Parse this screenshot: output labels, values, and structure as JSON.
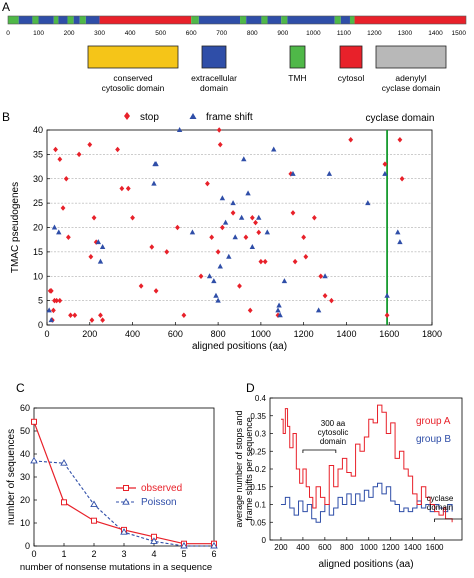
{
  "panel_labels": {
    "a": "A",
    "b": "B",
    "c": "C",
    "d": "D"
  },
  "colors": {
    "cytosolic_conserved": "#f5c518",
    "extracellular": "#2f4ea8",
    "tmh": "#4fb848",
    "cytosol": "#e8212a",
    "cyclase": "#b8b8b8",
    "stop": "#e8212a",
    "frameshift": "#2f4ea8",
    "cyclase_line": "#169b2e",
    "observed": "#e8212a",
    "poisson": "#2f4ea8",
    "groupA": "#e8212a",
    "groupB": "#2f4ea8"
  },
  "legend_a": [
    {
      "key": "cytosolic_conserved",
      "label_lines": [
        "conserved",
        "cytosolic domain"
      ]
    },
    {
      "key": "extracellular",
      "label_lines": [
        "extracellular",
        "domain"
      ]
    },
    {
      "key": "tmh",
      "label_lines": [
        "TMH"
      ]
    },
    {
      "key": "cytosol",
      "label_lines": [
        "cytosol"
      ]
    },
    {
      "key": "cyclase",
      "label_lines": [
        "adenylyl",
        "cyclase domain"
      ]
    }
  ],
  "chart_data": [
    {
      "panel": "A",
      "type": "domain-bar",
      "x_range": [
        0,
        1500
      ],
      "tick_labels": [
        "0",
        "100",
        "200",
        "300",
        "400",
        "500",
        "600",
        "700",
        "800",
        "900",
        "1000",
        "1100",
        "1200",
        "1300",
        "1400",
        "1500"
      ],
      "segments": [
        {
          "start": 0,
          "end": 35,
          "domain": "tmh"
        },
        {
          "start": 35,
          "end": 80,
          "domain": "extracellular"
        },
        {
          "start": 80,
          "end": 100,
          "domain": "tmh"
        },
        {
          "start": 100,
          "end": 150,
          "domain": "extracellular"
        },
        {
          "start": 150,
          "end": 165,
          "domain": "tmh"
        },
        {
          "start": 165,
          "end": 195,
          "domain": "extracellular"
        },
        {
          "start": 195,
          "end": 215,
          "domain": "tmh"
        },
        {
          "start": 215,
          "end": 235,
          "domain": "extracellular"
        },
        {
          "start": 235,
          "end": 255,
          "domain": "tmh"
        },
        {
          "start": 255,
          "end": 300,
          "domain": "extracellular"
        },
        {
          "start": 300,
          "end": 600,
          "domain": "cytosol"
        },
        {
          "start": 600,
          "end": 625,
          "domain": "tmh"
        },
        {
          "start": 625,
          "end": 760,
          "domain": "extracellular"
        },
        {
          "start": 760,
          "end": 780,
          "domain": "tmh"
        },
        {
          "start": 780,
          "end": 830,
          "domain": "extracellular"
        },
        {
          "start": 830,
          "end": 850,
          "domain": "tmh"
        },
        {
          "start": 850,
          "end": 895,
          "domain": "extracellular"
        },
        {
          "start": 895,
          "end": 915,
          "domain": "tmh"
        },
        {
          "start": 915,
          "end": 1070,
          "domain": "extracellular"
        },
        {
          "start": 1070,
          "end": 1090,
          "domain": "tmh"
        },
        {
          "start": 1090,
          "end": 1120,
          "domain": "extracellular"
        },
        {
          "start": 1120,
          "end": 1135,
          "domain": "tmh"
        },
        {
          "start": 1135,
          "end": 1500,
          "domain": "cytosol"
        }
      ]
    },
    {
      "panel": "B",
      "type": "scatter",
      "xlabel": "aligned positions (aa)",
      "ylabel": "TMAC pseudogenes",
      "xlim": [
        0,
        1800
      ],
      "ylim": [
        0,
        40
      ],
      "xticks": [
        0,
        200,
        400,
        600,
        800,
        1000,
        1200,
        1400,
        1600,
        1800
      ],
      "yticks": [
        0,
        5,
        10,
        15,
        20,
        25,
        30,
        35,
        40
      ],
      "grid": "horizontal dashed",
      "legend": {
        "stop": "stop",
        "frameshift": "frame shift"
      },
      "annotation": {
        "text": "cyclase domain",
        "x": 1590
      },
      "series": [
        {
          "name": "stop",
          "marker": "diamond",
          "points": [
            [
              40,
              36
            ],
            [
              60,
              34
            ],
            [
              75,
              24
            ],
            [
              90,
              30
            ],
            [
              100,
              18
            ],
            [
              110,
              2
            ],
            [
              130,
              2
            ],
            [
              150,
              35
            ],
            [
              15,
              7
            ],
            [
              20,
              7
            ],
            [
              35,
              5
            ],
            [
              45,
              5
            ],
            [
              60,
              5
            ],
            [
              25,
              1
            ],
            [
              30,
              3
            ],
            [
              200,
              37
            ],
            [
              205,
              14
            ],
            [
              210,
              1
            ],
            [
              220,
              22
            ],
            [
              230,
              17
            ],
            [
              250,
              2
            ],
            [
              260,
              1
            ],
            [
              330,
              36
            ],
            [
              350,
              28
            ],
            [
              380,
              28
            ],
            [
              400,
              22
            ],
            [
              440,
              8
            ],
            [
              490,
              16
            ],
            [
              510,
              7
            ],
            [
              560,
              15
            ],
            [
              610,
              20
            ],
            [
              640,
              2
            ],
            [
              720,
              10
            ],
            [
              750,
              29
            ],
            [
              770,
              18
            ],
            [
              800,
              15
            ],
            [
              805,
              40
            ],
            [
              810,
              37
            ],
            [
              820,
              20
            ],
            [
              870,
              23
            ],
            [
              900,
              8
            ],
            [
              930,
              18
            ],
            [
              950,
              3
            ],
            [
              960,
              22
            ],
            [
              975,
              21
            ],
            [
              990,
              19
            ],
            [
              1000,
              13
            ],
            [
              1020,
              13
            ],
            [
              1080,
              2
            ],
            [
              1140,
              31
            ],
            [
              1150,
              23
            ],
            [
              1160,
              13
            ],
            [
              1200,
              18
            ],
            [
              1210,
              14
            ],
            [
              1250,
              22
            ],
            [
              1280,
              10
            ],
            [
              1300,
              6
            ],
            [
              1330,
              5
            ],
            [
              1420,
              38
            ],
            [
              1580,
              33
            ],
            [
              1590,
              2
            ],
            [
              1650,
              38
            ],
            [
              1660,
              30
            ]
          ]
        },
        {
          "name": "frameshift",
          "marker": "triangle",
          "points": [
            [
              10,
              3
            ],
            [
              20,
              1
            ],
            [
              35,
              20
            ],
            [
              55,
              19
            ],
            [
              240,
              17
            ],
            [
              250,
              13
            ],
            [
              260,
              16
            ],
            [
              500,
              29
            ],
            [
              505,
              33
            ],
            [
              510,
              33
            ],
            [
              620,
              40
            ],
            [
              680,
              19
            ],
            [
              760,
              10
            ],
            [
              780,
              9
            ],
            [
              790,
              6
            ],
            [
              800,
              5
            ],
            [
              810,
              12
            ],
            [
              820,
              26
            ],
            [
              835,
              21
            ],
            [
              850,
              14
            ],
            [
              870,
              25
            ],
            [
              880,
              18
            ],
            [
              910,
              22
            ],
            [
              920,
              34
            ],
            [
              940,
              27
            ],
            [
              960,
              16
            ],
            [
              990,
              22
            ],
            [
              1030,
              19
            ],
            [
              1060,
              36
            ],
            [
              1080,
              3
            ],
            [
              1085,
              4
            ],
            [
              1090,
              2
            ],
            [
              1110,
              9
            ],
            [
              1150,
              31
            ],
            [
              1270,
              3
            ],
            [
              1300,
              10
            ],
            [
              1320,
              31
            ],
            [
              1500,
              25
            ],
            [
              1580,
              31
            ],
            [
              1590,
              6
            ],
            [
              1640,
              19
            ],
            [
              1650,
              17
            ]
          ]
        }
      ]
    },
    {
      "panel": "C",
      "type": "line",
      "xlabel": "number of nonsense mutations in a sequence",
      "ylabel": "number of sequences",
      "xlim": [
        0,
        6
      ],
      "ylim": [
        0,
        60
      ],
      "xticks": [
        0,
        1,
        2,
        3,
        4,
        5,
        6
      ],
      "yticks": [
        0,
        10,
        20,
        30,
        40,
        50,
        60
      ],
      "x": [
        0,
        1,
        2,
        3,
        4,
        5,
        6
      ],
      "series": [
        {
          "name": "observed",
          "marker": "square",
          "values": [
            54,
            19,
            11,
            7,
            4,
            1,
            1
          ]
        },
        {
          "name": "Poisson",
          "marker": "triangle",
          "values": [
            37,
            36,
            18,
            6,
            2,
            0,
            0
          ]
        }
      ]
    },
    {
      "panel": "D",
      "type": "line",
      "xlabel": "aligned positions (aa)",
      "ylabel_lines": [
        "average number of stops and",
        "frame shifts per sequence"
      ],
      "xlim": [
        100,
        1850
      ],
      "ylim": [
        0,
        0.4
      ],
      "xticks": [
        200,
        400,
        600,
        800,
        1000,
        1200,
        1400,
        1600
      ],
      "yticks": [
        0,
        0.05,
        0.1,
        0.15,
        0.2,
        0.25,
        0.3,
        0.35,
        0.4
      ],
      "ytick_labels": [
        "0",
        "0.05",
        "0.1",
        "0.15",
        "0.2",
        "0.25",
        "0.3",
        "0.35",
        "0.4"
      ],
      "annotations": [
        {
          "lines": [
            "300 aa",
            "cytosolic",
            "domain"
          ]
        },
        {
          "lines": [
            "cyclase",
            "domain"
          ]
        }
      ],
      "series": [
        {
          "name": "group A",
          "step": true,
          "points": [
            [
              200,
              0.34
            ],
            [
              220,
              0.3
            ],
            [
              240,
              0.37
            ],
            [
              260,
              0.32
            ],
            [
              280,
              0.26
            ],
            [
              310,
              0.3
            ],
            [
              340,
              0.2
            ],
            [
              370,
              0.16
            ],
            [
              400,
              0.2
            ],
            [
              430,
              0.15
            ],
            [
              460,
              0.12
            ],
            [
              490,
              0.09
            ],
            [
              520,
              0.15
            ],
            [
              560,
              0.12
            ],
            [
              600,
              0.1
            ],
            [
              640,
              0.21
            ],
            [
              680,
              0.15
            ],
            [
              720,
              0.2
            ],
            [
              760,
              0.23
            ],
            [
              800,
              0.19
            ],
            [
              840,
              0.18
            ],
            [
              880,
              0.27
            ],
            [
              920,
              0.25
            ],
            [
              960,
              0.29
            ],
            [
              1000,
              0.34
            ],
            [
              1040,
              0.33
            ],
            [
              1080,
              0.38
            ],
            [
              1120,
              0.36
            ],
            [
              1160,
              0.3
            ],
            [
              1200,
              0.33
            ],
            [
              1240,
              0.23
            ],
            [
              1280,
              0.25
            ],
            [
              1320,
              0.2
            ],
            [
              1360,
              0.18
            ],
            [
              1400,
              0.13
            ],
            [
              1440,
              0.1
            ],
            [
              1480,
              0.15
            ],
            [
              1520,
              0.12
            ],
            [
              1560,
              0.1
            ],
            [
              1600,
              0.08
            ],
            [
              1640,
              0.07
            ],
            [
              1680,
              0.09
            ],
            [
              1700,
              0.06
            ],
            [
              1760,
              0.05
            ]
          ]
        },
        {
          "name": "group B",
          "step": true,
          "points": [
            [
              200,
              0.1
            ],
            [
              240,
              0.12
            ],
            [
              280,
              0.09
            ],
            [
              320,
              0.07
            ],
            [
              360,
              0.11
            ],
            [
              400,
              0.08
            ],
            [
              440,
              0.1
            ],
            [
              480,
              0.06
            ],
            [
              520,
              0.05
            ],
            [
              560,
              0.08
            ],
            [
              600,
              0.1
            ],
            [
              640,
              0.07
            ],
            [
              680,
              0.09
            ],
            [
              720,
              0.12
            ],
            [
              760,
              0.1
            ],
            [
              800,
              0.13
            ],
            [
              840,
              0.1
            ],
            [
              880,
              0.13
            ],
            [
              920,
              0.11
            ],
            [
              960,
              0.14
            ],
            [
              1000,
              0.12
            ],
            [
              1040,
              0.15
            ],
            [
              1080,
              0.16
            ],
            [
              1120,
              0.13
            ],
            [
              1160,
              0.15
            ],
            [
              1200,
              0.11
            ],
            [
              1240,
              0.1
            ],
            [
              1280,
              0.08
            ],
            [
              1320,
              0.09
            ],
            [
              1360,
              0.08
            ],
            [
              1400,
              0.09
            ],
            [
              1440,
              0.11
            ],
            [
              1480,
              0.09
            ],
            [
              1520,
              0.1
            ],
            [
              1560,
              0.08
            ],
            [
              1600,
              0.1
            ],
            [
              1640,
              0.09
            ],
            [
              1680,
              0.08
            ],
            [
              1720,
              0.1
            ],
            [
              1760,
              0.08
            ]
          ]
        }
      ]
    }
  ]
}
